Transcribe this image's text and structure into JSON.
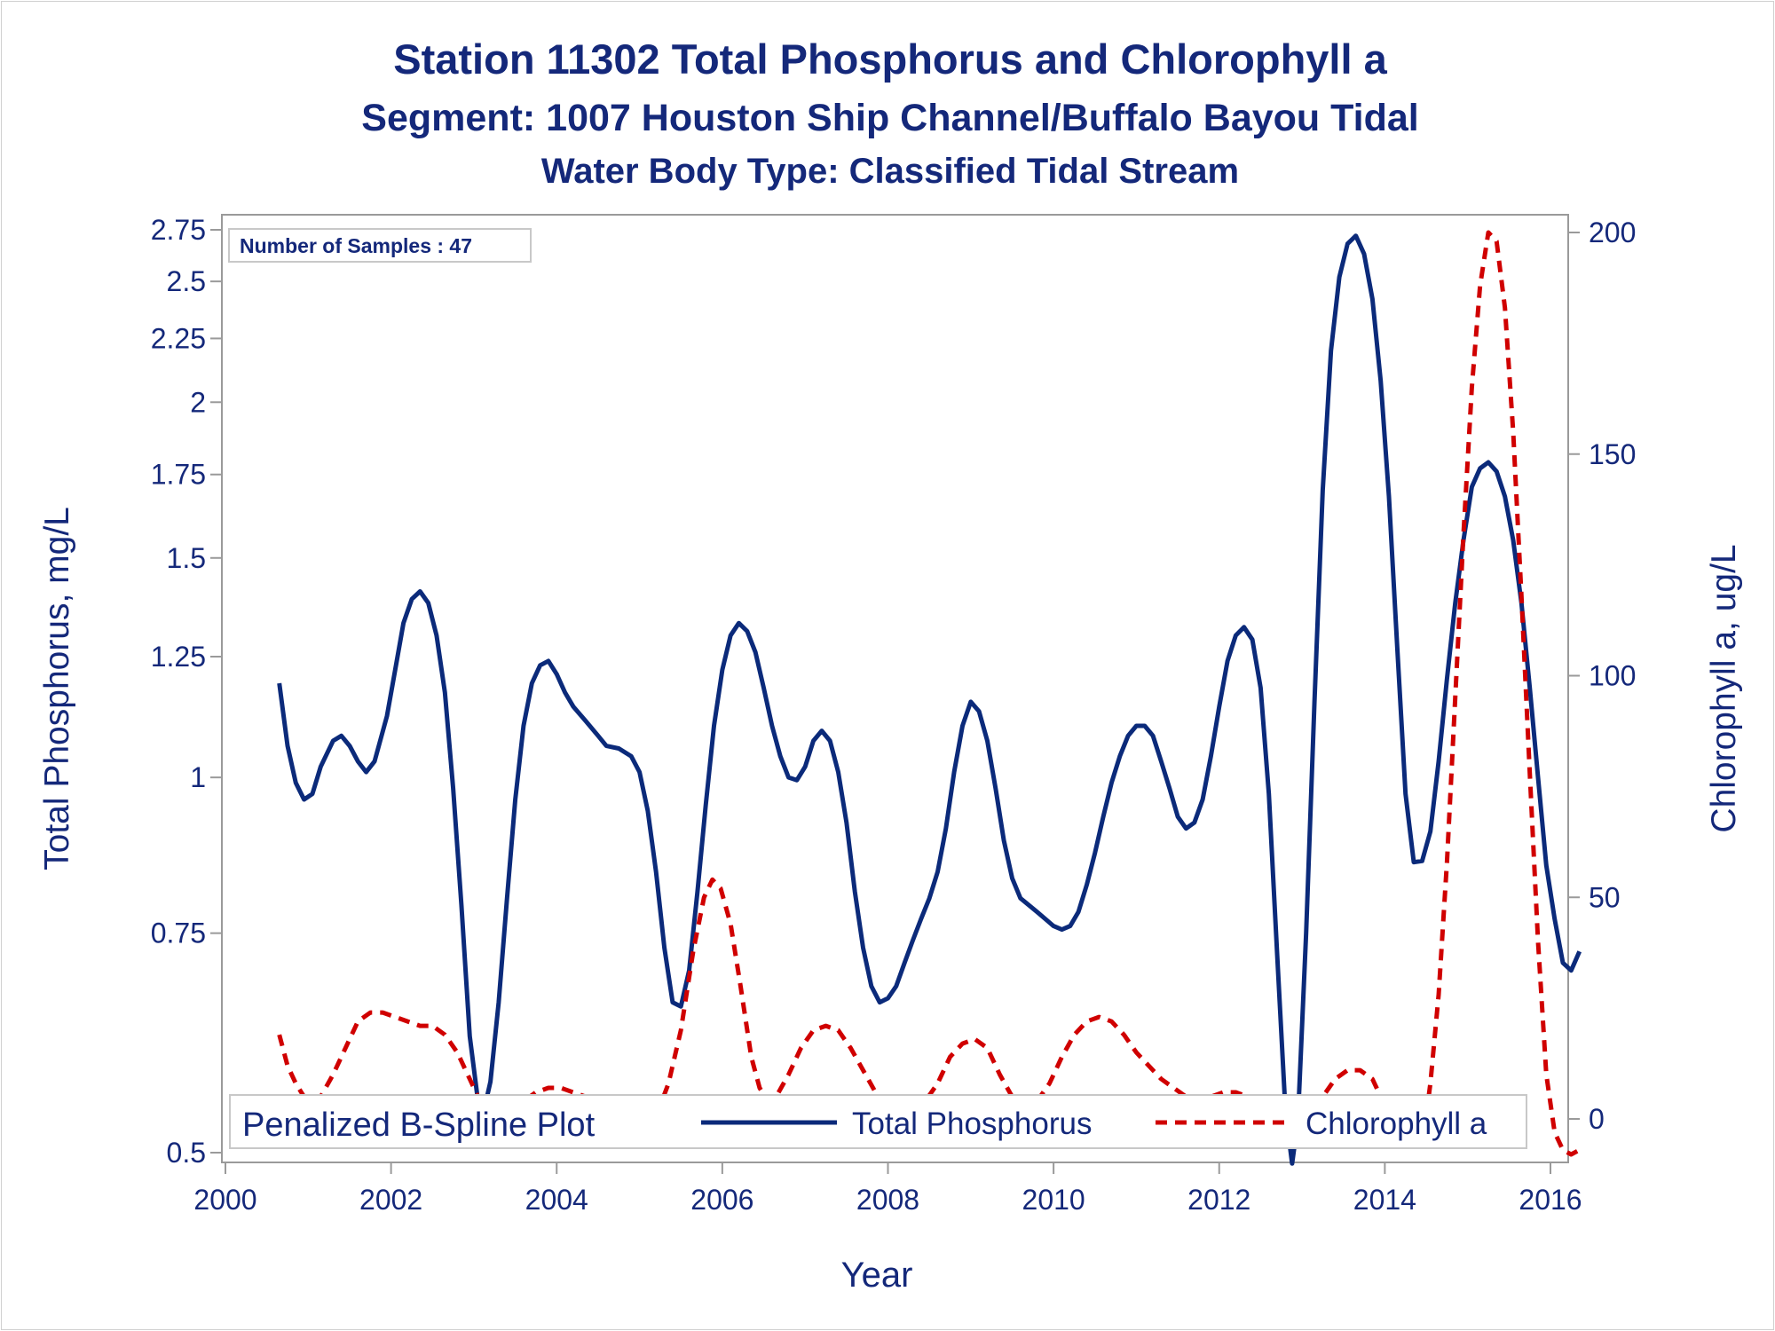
{
  "titles": {
    "line1": "Station 11302  Total Phosphorus and Chlorophyll a",
    "line2": "Segment: 1007  Houston Ship Channel/Buffalo Bayou Tidal",
    "line3": "Water Body Type: Classified Tidal Stream"
  },
  "inset": {
    "samples": "Number of Samples : 47"
  },
  "legend": {
    "title": "Penalized B-Spline Plot",
    "tp_label": "Total Phosphorus",
    "chl_label": "Chlorophyll a"
  },
  "colors": {
    "text": "#14287a",
    "tp": "#0b2a7a",
    "chl": "#d00000",
    "frame": "#9a9a9a"
  },
  "chart_data": {
    "type": "line",
    "xlabel": "Year",
    "ylabel": "Total Phosphorus, mg/L",
    "y2label": "Chlorophyll a, ug/L",
    "xlim": [
      2000,
      2016
    ],
    "ylim": [
      0.5,
      2.75
    ],
    "y_scale": "log",
    "y2lim": [
      -10,
      200
    ],
    "x_ticks": [
      2000,
      2002,
      2004,
      2006,
      2008,
      2010,
      2012,
      2014,
      2016
    ],
    "y_ticks": [
      0.5,
      0.75,
      1,
      1.25,
      1.5,
      1.75,
      2,
      2.25,
      2.5,
      2.75
    ],
    "y_tick_labels": [
      "0.5",
      "0.75",
      "1",
      "1.25",
      "1.5",
      "1.75",
      "2",
      "2.25",
      "2.5",
      "2.75"
    ],
    "y2_ticks": [
      0,
      50,
      100,
      150,
      200
    ],
    "grid": false,
    "legend_position": "bottom",
    "series": [
      {
        "name": "Total Phosphorus",
        "axis": "left",
        "style": "solid",
        "points": [
          [
            2000.65,
            1.19
          ],
          [
            2000.75,
            1.06
          ],
          [
            2000.85,
            0.99
          ],
          [
            2000.95,
            0.96
          ],
          [
            2001.05,
            0.97
          ],
          [
            2001.15,
            1.02
          ],
          [
            2001.3,
            1.07
          ],
          [
            2001.4,
            1.08
          ],
          [
            2001.5,
            1.06
          ],
          [
            2001.6,
            1.03
          ],
          [
            2001.7,
            1.01
          ],
          [
            2001.8,
            1.03
          ],
          [
            2001.95,
            1.12
          ],
          [
            2002.05,
            1.22
          ],
          [
            2002.15,
            1.33
          ],
          [
            2002.25,
            1.39
          ],
          [
            2002.35,
            1.41
          ],
          [
            2002.45,
            1.38
          ],
          [
            2002.55,
            1.3
          ],
          [
            2002.65,
            1.17
          ],
          [
            2002.75,
            0.98
          ],
          [
            2002.85,
            0.79
          ],
          [
            2002.95,
            0.62
          ],
          [
            2003.05,
            0.55
          ],
          [
            2003.12,
            0.54
          ],
          [
            2003.2,
            0.57
          ],
          [
            2003.3,
            0.66
          ],
          [
            2003.4,
            0.8
          ],
          [
            2003.5,
            0.96
          ],
          [
            2003.6,
            1.1
          ],
          [
            2003.7,
            1.19
          ],
          [
            2003.8,
            1.23
          ],
          [
            2003.9,
            1.24
          ],
          [
            2004.0,
            1.21
          ],
          [
            2004.1,
            1.17
          ],
          [
            2004.2,
            1.14
          ],
          [
            2004.35,
            1.11
          ],
          [
            2004.5,
            1.08
          ],
          [
            2004.6,
            1.06
          ],
          [
            2004.75,
            1.055
          ],
          [
            2004.9,
            1.04
          ],
          [
            2005.0,
            1.01
          ],
          [
            2005.1,
            0.94
          ],
          [
            2005.2,
            0.84
          ],
          [
            2005.3,
            0.73
          ],
          [
            2005.4,
            0.66
          ],
          [
            2005.5,
            0.655
          ],
          [
            2005.6,
            0.7
          ],
          [
            2005.7,
            0.81
          ],
          [
            2005.8,
            0.95
          ],
          [
            2005.9,
            1.1
          ],
          [
            2006.0,
            1.22
          ],
          [
            2006.1,
            1.3
          ],
          [
            2006.2,
            1.33
          ],
          [
            2006.3,
            1.31
          ],
          [
            2006.4,
            1.26
          ],
          [
            2006.5,
            1.18
          ],
          [
            2006.6,
            1.1
          ],
          [
            2006.7,
            1.04
          ],
          [
            2006.8,
            1.0
          ],
          [
            2006.9,
            0.995
          ],
          [
            2007.0,
            1.02
          ],
          [
            2007.1,
            1.07
          ],
          [
            2007.2,
            1.09
          ],
          [
            2007.3,
            1.07
          ],
          [
            2007.4,
            1.01
          ],
          [
            2007.5,
            0.92
          ],
          [
            2007.6,
            0.81
          ],
          [
            2007.7,
            0.73
          ],
          [
            2007.8,
            0.68
          ],
          [
            2007.9,
            0.66
          ],
          [
            2008.0,
            0.665
          ],
          [
            2008.1,
            0.68
          ],
          [
            2008.2,
            0.71
          ],
          [
            2008.3,
            0.74
          ],
          [
            2008.4,
            0.77
          ],
          [
            2008.5,
            0.8
          ],
          [
            2008.6,
            0.84
          ],
          [
            2008.7,
            0.91
          ],
          [
            2008.8,
            1.01
          ],
          [
            2008.9,
            1.1
          ],
          [
            2009.0,
            1.15
          ],
          [
            2009.1,
            1.13
          ],
          [
            2009.2,
            1.07
          ],
          [
            2009.3,
            0.98
          ],
          [
            2009.4,
            0.89
          ],
          [
            2009.5,
            0.83
          ],
          [
            2009.6,
            0.8
          ],
          [
            2009.7,
            0.79
          ],
          [
            2009.8,
            0.78
          ],
          [
            2009.9,
            0.77
          ],
          [
            2010.0,
            0.76
          ],
          [
            2010.1,
            0.755
          ],
          [
            2010.2,
            0.76
          ],
          [
            2010.3,
            0.78
          ],
          [
            2010.4,
            0.82
          ],
          [
            2010.5,
            0.87
          ],
          [
            2010.6,
            0.93
          ],
          [
            2010.7,
            0.99
          ],
          [
            2010.8,
            1.04
          ],
          [
            2010.9,
            1.08
          ],
          [
            2011.0,
            1.1
          ],
          [
            2011.1,
            1.1
          ],
          [
            2011.2,
            1.08
          ],
          [
            2011.3,
            1.03
          ],
          [
            2011.4,
            0.98
          ],
          [
            2011.5,
            0.93
          ],
          [
            2011.6,
            0.91
          ],
          [
            2011.7,
            0.92
          ],
          [
            2011.8,
            0.96
          ],
          [
            2011.9,
            1.04
          ],
          [
            2012.0,
            1.14
          ],
          [
            2012.1,
            1.24
          ],
          [
            2012.2,
            1.3
          ],
          [
            2012.3,
            1.32
          ],
          [
            2012.4,
            1.29
          ],
          [
            2012.5,
            1.18
          ],
          [
            2012.6,
            0.97
          ],
          [
            2012.7,
            0.72
          ],
          [
            2012.8,
            0.54
          ],
          [
            2012.88,
            0.49
          ],
          [
            2012.95,
            0.53
          ],
          [
            2013.05,
            0.75
          ],
          [
            2013.15,
            1.15
          ],
          [
            2013.25,
            1.7
          ],
          [
            2013.35,
            2.2
          ],
          [
            2013.45,
            2.52
          ],
          [
            2013.55,
            2.68
          ],
          [
            2013.65,
            2.72
          ],
          [
            2013.75,
            2.63
          ],
          [
            2013.85,
            2.42
          ],
          [
            2013.95,
            2.08
          ],
          [
            2014.05,
            1.68
          ],
          [
            2014.15,
            1.27
          ],
          [
            2014.25,
            0.97
          ],
          [
            2014.35,
            0.855
          ],
          [
            2014.45,
            0.857
          ],
          [
            2014.55,
            0.905
          ],
          [
            2014.65,
            1.03
          ],
          [
            2014.75,
            1.2
          ],
          [
            2014.85,
            1.38
          ],
          [
            2014.95,
            1.55
          ],
          [
            2015.05,
            1.71
          ],
          [
            2015.15,
            1.77
          ],
          [
            2015.25,
            1.79
          ],
          [
            2015.35,
            1.76
          ],
          [
            2015.45,
            1.68
          ],
          [
            2015.55,
            1.55
          ],
          [
            2015.65,
            1.38
          ],
          [
            2015.75,
            1.18
          ],
          [
            2015.85,
            1.0
          ],
          [
            2015.95,
            0.85
          ],
          [
            2016.05,
            0.77
          ],
          [
            2016.15,
            0.71
          ],
          [
            2016.25,
            0.7
          ],
          [
            2016.35,
            0.725
          ]
        ]
      },
      {
        "name": "Chlorophyll a",
        "axis": "right",
        "style": "dashed",
        "points": [
          [
            2000.65,
            19
          ],
          [
            2000.75,
            12
          ],
          [
            2000.85,
            8
          ],
          [
            2000.95,
            5
          ],
          [
            2001.05,
            4
          ],
          [
            2001.15,
            5
          ],
          [
            2001.3,
            10
          ],
          [
            2001.45,
            16
          ],
          [
            2001.6,
            22
          ],
          [
            2001.75,
            24
          ],
          [
            2001.9,
            24
          ],
          [
            2002.05,
            23
          ],
          [
            2002.2,
            22
          ],
          [
            2002.35,
            21
          ],
          [
            2002.5,
            21
          ],
          [
            2002.65,
            19
          ],
          [
            2002.8,
            15
          ],
          [
            2002.95,
            9
          ],
          [
            2003.05,
            5
          ],
          [
            2003.15,
            3
          ],
          [
            2003.3,
            2
          ],
          [
            2003.45,
            3
          ],
          [
            2003.6,
            4
          ],
          [
            2003.75,
            6
          ],
          [
            2003.9,
            7
          ],
          [
            2004.05,
            7
          ],
          [
            2004.2,
            6
          ],
          [
            2004.35,
            5
          ],
          [
            2004.5,
            5
          ],
          [
            2004.65,
            4
          ],
          [
            2004.8,
            4
          ],
          [
            2004.95,
            3
          ],
          [
            2005.05,
            2
          ],
          [
            2005.15,
            1
          ],
          [
            2005.25,
            3
          ],
          [
            2005.35,
            8
          ],
          [
            2005.5,
            20
          ],
          [
            2005.65,
            38
          ],
          [
            2005.78,
            50
          ],
          [
            2005.88,
            54
          ],
          [
            2005.98,
            52
          ],
          [
            2006.1,
            44
          ],
          [
            2006.22,
            30
          ],
          [
            2006.35,
            14
          ],
          [
            2006.45,
            7
          ],
          [
            2006.55,
            4
          ],
          [
            2006.65,
            5
          ],
          [
            2006.8,
            10
          ],
          [
            2006.95,
            16
          ],
          [
            2007.1,
            20
          ],
          [
            2007.25,
            21
          ],
          [
            2007.4,
            20
          ],
          [
            2007.55,
            16
          ],
          [
            2007.7,
            11
          ],
          [
            2007.85,
            6
          ],
          [
            2008.0,
            3
          ],
          [
            2008.15,
            2
          ],
          [
            2008.3,
            2
          ],
          [
            2008.45,
            4
          ],
          [
            2008.6,
            8
          ],
          [
            2008.75,
            14
          ],
          [
            2008.9,
            17
          ],
          [
            2009.05,
            18
          ],
          [
            2009.2,
            16
          ],
          [
            2009.35,
            10
          ],
          [
            2009.5,
            5
          ],
          [
            2009.65,
            3
          ],
          [
            2009.8,
            4
          ],
          [
            2009.95,
            8
          ],
          [
            2010.1,
            14
          ],
          [
            2010.25,
            19
          ],
          [
            2010.4,
            22
          ],
          [
            2010.55,
            23
          ],
          [
            2010.7,
            22
          ],
          [
            2010.85,
            19
          ],
          [
            2011.0,
            15
          ],
          [
            2011.15,
            12
          ],
          [
            2011.3,
            9
          ],
          [
            2011.45,
            7
          ],
          [
            2011.6,
            5
          ],
          [
            2011.75,
            5
          ],
          [
            2011.9,
            5
          ],
          [
            2012.05,
            6
          ],
          [
            2012.2,
            6
          ],
          [
            2012.35,
            5
          ],
          [
            2012.5,
            4
          ],
          [
            2012.65,
            2
          ],
          [
            2012.8,
            0
          ],
          [
            2012.95,
            -1
          ],
          [
            2013.1,
            1
          ],
          [
            2013.25,
            5
          ],
          [
            2013.4,
            9
          ],
          [
            2013.55,
            11
          ],
          [
            2013.7,
            11
          ],
          [
            2013.85,
            9
          ],
          [
            2014.0,
            3
          ],
          [
            2014.15,
            -3
          ],
          [
            2014.3,
            -6
          ],
          [
            2014.4,
            -6
          ],
          [
            2014.48,
            -2
          ],
          [
            2014.55,
            8
          ],
          [
            2014.65,
            28
          ],
          [
            2014.75,
            58
          ],
          [
            2014.85,
            95
          ],
          [
            2014.95,
            132
          ],
          [
            2015.05,
            165
          ],
          [
            2015.15,
            188
          ],
          [
            2015.25,
            200
          ],
          [
            2015.35,
            198
          ],
          [
            2015.45,
            183
          ],
          [
            2015.55,
            155
          ],
          [
            2015.65,
            118
          ],
          [
            2015.75,
            78
          ],
          [
            2015.85,
            40
          ],
          [
            2015.95,
            10
          ],
          [
            2016.05,
            -3
          ],
          [
            2016.15,
            -7
          ],
          [
            2016.25,
            -8
          ],
          [
            2016.35,
            -7
          ]
        ]
      }
    ]
  }
}
